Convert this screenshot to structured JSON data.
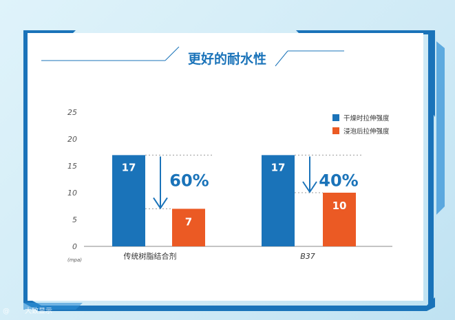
{
  "colors": {
    "dry": "#1a73b9",
    "wet": "#eb5a24",
    "accent": "#1a73b9",
    "frame": "#1a73b9"
  },
  "chart_data": {
    "type": "bar",
    "title": "更好的耐水性",
    "y_unit": "(mpa)",
    "ylim": [
      0,
      25
    ],
    "y_ticks": [
      0,
      5,
      10,
      15,
      20,
      25
    ],
    "categories": [
      "传统树脂结合剂",
      "B37"
    ],
    "series": [
      {
        "name": "干燥时拉伸强度",
        "color": "#1a73b9",
        "values": [
          17,
          17
        ]
      },
      {
        "name": "浸泡后拉伸强度",
        "color": "#eb5a24",
        "values": [
          7,
          10
        ]
      }
    ],
    "annotations": [
      "60%",
      "40%"
    ],
    "legend_position": "top-right",
    "grid": false
  },
  "watermark": "大致显示"
}
